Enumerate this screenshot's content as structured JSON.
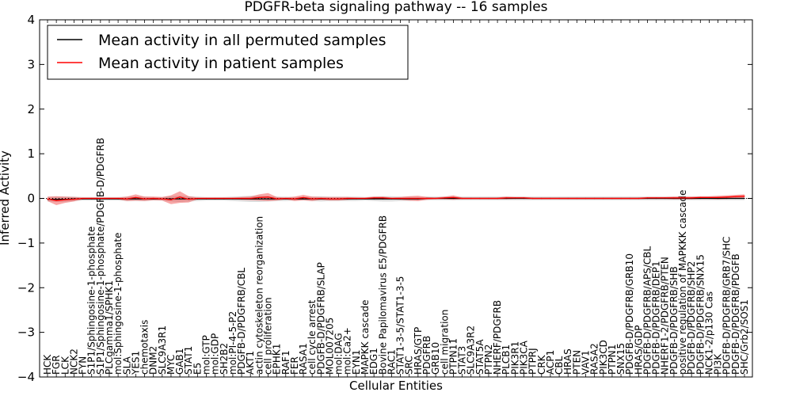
{
  "chart_data": {
    "type": "line",
    "title": "PDGFR-beta signaling pathway -- 16 samples",
    "xlabel": "Cellular Entities",
    "ylabel": "Inferred Activity",
    "ylim": [
      -4,
      4
    ],
    "yticks": [
      "4",
      "3",
      "2",
      "1",
      "0",
      "−1",
      "−2",
      "−3",
      "−4"
    ],
    "ytick_values": [
      4,
      3,
      2,
      1,
      0,
      -1,
      -2,
      -3,
      -4
    ],
    "legend": {
      "position": "top-left",
      "entries": [
        {
          "label": "Mean activity in all permuted samples",
          "color": "#000000"
        },
        {
          "label": "Mean activity in patient samples",
          "color": "#ff0000"
        }
      ]
    },
    "entities": [
      "HCK",
      "FGR",
      "LCK",
      "NCK2",
      "FYN",
      "S1P1/Sphingosine-1-phosphate",
      "S1P1/Sphingosine-1-phosphate/PDGFB-D/PDGFRB",
      "PLCgamma1/SPHK1",
      "mol:Sphingosine-1-phosphate",
      "SLA",
      "YES1",
      "chemotaxis",
      "DNM2",
      "SLC9A3R1",
      "MYC",
      "GAB1",
      "STAT1",
      "E5",
      "mol:GTP",
      "mol:GDP",
      "SH2B2",
      "mol:PI-4-5-P2",
      "PDGFB-D/PDGFRB/CBL",
      "AKT1",
      "actin cytoskeleton reorganization",
      "cell proliferation",
      "EPHK1",
      "RAF1",
      "FER",
      "RASA1",
      "cell cycle arrest",
      "PDGFB-D/PDGFRB/SLAP",
      "MOL007205",
      "mol:DAG",
      "mol:Ca2+",
      "EYN1",
      "MAPKK cascade",
      "EDG1",
      "Bovine Papilomavirus E5/PDGFRB",
      "RAC1",
      "STAT1-3-5/STAT1-3-5",
      "SRC",
      "HRAS/GTP",
      "PDGFRB",
      "GRB10",
      "cell migration",
      "PTPN11",
      "STAT3",
      "SLC9A3R2",
      "STAT5A",
      "PTPN2",
      "NHERF/PDGFRB",
      "PLCB1",
      "PIK3R1",
      "PIK3CA",
      "PTPRJ",
      "CRK",
      "ACP1",
      "CBL",
      "HRAS",
      "PTEN",
      "VAV1",
      "RASA2",
      "PIK3CD",
      "PTPN1",
      "SNX15",
      "PDGFB-D/PDGFRB/GRB10",
      "HRAS/GDP",
      "PDGFB-D/PDGFRB/APS/CBL",
      "PDGFB-D/PDGFRB/DEP1",
      "NHERF1-2/PDGFRB/PTEN",
      "PDGFB-D/PDGFRB/SHB",
      "positive regulation of MAPKKK cascade",
      "PDGFB-D/PDGFRB/SHP2",
      "PDGFB-D/PDGFRB/SNX15",
      "NCK1-2/p130 Cas",
      "PI3K",
      "PDGFB-D/PDGFRB/GRB7/SHC",
      "PDGFB-D/PDGFRB/PDGFB",
      "SHC/Grb2/SOS1"
    ],
    "series": [
      {
        "name": "Mean activity in all permuted samples",
        "color": "#000000",
        "values": [
          -0.02,
          -0.02,
          -0.02,
          -0.01,
          -0.01,
          -0.01,
          -0.01,
          -0.01,
          -0.01,
          -0.01,
          -0.01,
          -0.01,
          -0.01,
          -0.01,
          -0.01,
          -0.01,
          -0.01,
          -0.01,
          -0.01,
          -0.01,
          -0.01,
          -0.01,
          -0.01,
          -0.01,
          -0.01,
          -0.01,
          -0.01,
          -0.01,
          -0.01,
          -0.01,
          -0.01,
          -0.01,
          -0.01,
          -0.01,
          -0.01,
          -0.01,
          -0.01,
          -0.01,
          -0.01,
          -0.01,
          -0.01,
          -0.01,
          -0.01,
          0.0,
          0.0,
          0.0,
          0.0,
          0.0,
          0.0,
          0.0,
          0.0,
          0.0,
          0.0,
          0.0,
          0.0,
          0.0,
          0.0,
          0.0,
          0.0,
          0.0,
          0.0,
          0.0,
          0.0,
          0.0,
          0.0,
          0.0,
          0.0,
          0.0,
          0.0,
          0.0,
          0.0,
          0.0,
          0.0,
          0.0,
          0.0,
          0.0,
          0.0,
          0.0,
          0.0,
          0.0
        ],
        "band": [
          0.05,
          0.06,
          0.06,
          0.05,
          0.04,
          0.04,
          0.04,
          0.04,
          0.04,
          0.05,
          0.05,
          0.05,
          0.04,
          0.04,
          0.06,
          0.07,
          0.06,
          0.05,
          0.04,
          0.04,
          0.04,
          0.05,
          0.06,
          0.07,
          0.07,
          0.06,
          0.05,
          0.05,
          0.04,
          0.04,
          0.05,
          0.06,
          0.05,
          0.05,
          0.05,
          0.05,
          0.04,
          0.05,
          0.06,
          0.06,
          0.05,
          0.05,
          0.04,
          0.04,
          0.04,
          0.04,
          0.04,
          0.04,
          0.04,
          0.04,
          0.04,
          0.04,
          0.04,
          0.04,
          0.04,
          0.04,
          0.04,
          0.04,
          0.04,
          0.04,
          0.04,
          0.04,
          0.04,
          0.04,
          0.04,
          0.04,
          0.04,
          0.04,
          0.04,
          0.04,
          0.04,
          0.04,
          0.04,
          0.04,
          0.04,
          0.04,
          0.04,
          0.04,
          0.04,
          0.04
        ]
      },
      {
        "name": "Mean activity in patient samples",
        "color": "#ff0000",
        "values": [
          -0.01,
          -0.05,
          -0.03,
          -0.02,
          0.0,
          0.0,
          0.0,
          0.0,
          0.0,
          -0.01,
          0.02,
          -0.01,
          0.0,
          -0.01,
          -0.03,
          0.03,
          -0.02,
          0.0,
          0.0,
          0.0,
          0.0,
          0.0,
          0.0,
          0.0,
          0.02,
          0.03,
          -0.01,
          0.0,
          -0.01,
          0.02,
          -0.01,
          0.0,
          -0.01,
          -0.01,
          0.0,
          0.0,
          0.0,
          0.01,
          0.01,
          0.0,
          0.0,
          0.0,
          0.0,
          0.0,
          0.0,
          0.01,
          0.02,
          0.0,
          0.0,
          0.0,
          0.0,
          0.0,
          0.01,
          0.01,
          0.01,
          0.0,
          0.0,
          0.0,
          0.0,
          0.0,
          0.0,
          0.0,
          0.0,
          0.0,
          0.0,
          0.0,
          0.0,
          0.0,
          0.01,
          0.01,
          0.01,
          0.01,
          0.01,
          0.01,
          0.02,
          0.02,
          0.02,
          0.03,
          0.04,
          0.05
        ],
        "band": [
          0.05,
          0.1,
          0.07,
          0.05,
          0.02,
          0.02,
          0.02,
          0.02,
          0.02,
          0.05,
          0.07,
          0.05,
          0.04,
          0.04,
          0.1,
          0.13,
          0.07,
          0.02,
          0.02,
          0.02,
          0.02,
          0.02,
          0.03,
          0.04,
          0.07,
          0.09,
          0.04,
          0.02,
          0.05,
          0.06,
          0.05,
          0.03,
          0.04,
          0.04,
          0.03,
          0.02,
          0.02,
          0.03,
          0.03,
          0.02,
          0.03,
          0.05,
          0.06,
          0.03,
          0.02,
          0.03,
          0.05,
          0.02,
          0.02,
          0.02,
          0.02,
          0.02,
          0.03,
          0.02,
          0.02,
          0.02,
          0.02,
          0.02,
          0.02,
          0.02,
          0.02,
          0.02,
          0.02,
          0.02,
          0.02,
          0.02,
          0.02,
          0.02,
          0.02,
          0.02,
          0.02,
          0.03,
          0.03,
          0.03,
          0.03,
          0.03,
          0.04,
          0.04,
          0.04,
          0.04
        ]
      }
    ]
  }
}
